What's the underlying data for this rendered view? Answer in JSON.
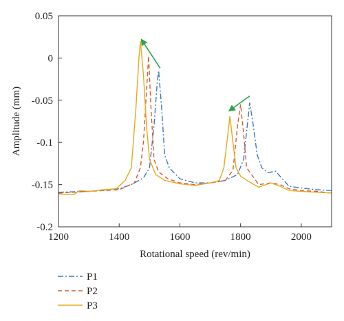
{
  "chart_data": {
    "type": "line",
    "xlabel": "Rotational speed (rev/min)",
    "ylabel": "Amplitude (mm)",
    "xlim": [
      1200,
      2100
    ],
    "ylim": [
      -0.2,
      0.05
    ],
    "xticks": [
      1200,
      1400,
      1600,
      1800,
      2000
    ],
    "yticks": [
      -0.2,
      -0.15,
      -0.1,
      -0.05,
      0,
      0.05
    ],
    "ytick_labels": [
      "-0.2",
      "-0.15",
      "-0.1",
      "-0.05",
      "0",
      "0.05"
    ],
    "xtick_labels": [
      "1200",
      "1400",
      "1600",
      "1800",
      "2000"
    ],
    "grid": false,
    "legend_position": "below plot, left",
    "series": [
      {
        "name": "P1",
        "color": "#3a78c2",
        "dash": "dash-dot",
        "points": [
          [
            1200,
            -0.159
          ],
          [
            1300,
            -0.158
          ],
          [
            1400,
            -0.155
          ],
          [
            1440,
            -0.15
          ],
          [
            1480,
            -0.142
          ],
          [
            1500,
            -0.13
          ],
          [
            1515,
            -0.08
          ],
          [
            1525,
            -0.03
          ],
          [
            1530,
            -0.015
          ],
          [
            1540,
            -0.06
          ],
          [
            1550,
            -0.115
          ],
          [
            1565,
            -0.13
          ],
          [
            1600,
            -0.143
          ],
          [
            1650,
            -0.148
          ],
          [
            1700,
            -0.148
          ],
          [
            1750,
            -0.145
          ],
          [
            1790,
            -0.138
          ],
          [
            1810,
            -0.12
          ],
          [
            1822,
            -0.08
          ],
          [
            1830,
            -0.053
          ],
          [
            1840,
            -0.075
          ],
          [
            1855,
            -0.115
          ],
          [
            1870,
            -0.13
          ],
          [
            1890,
            -0.136
          ],
          [
            1915,
            -0.134
          ],
          [
            1930,
            -0.14
          ],
          [
            1960,
            -0.152
          ],
          [
            2000,
            -0.154
          ],
          [
            2050,
            -0.156
          ],
          [
            2100,
            -0.157
          ]
        ]
      },
      {
        "name": "P2",
        "color": "#d85a2a",
        "dash": "dashed",
        "points": [
          [
            1200,
            -0.16
          ],
          [
            1300,
            -0.158
          ],
          [
            1400,
            -0.156
          ],
          [
            1450,
            -0.148
          ],
          [
            1470,
            -0.13
          ],
          [
            1480,
            -0.1
          ],
          [
            1490,
            -0.04
          ],
          [
            1497,
            0.002
          ],
          [
            1505,
            -0.06
          ],
          [
            1515,
            -0.12
          ],
          [
            1530,
            -0.135
          ],
          [
            1560,
            -0.143
          ],
          [
            1600,
            -0.148
          ],
          [
            1650,
            -0.15
          ],
          [
            1700,
            -0.148
          ],
          [
            1750,
            -0.145
          ],
          [
            1775,
            -0.133
          ],
          [
            1790,
            -0.08
          ],
          [
            1800,
            -0.055
          ],
          [
            1810,
            -0.09
          ],
          [
            1820,
            -0.13
          ],
          [
            1840,
            -0.14
          ],
          [
            1860,
            -0.15
          ],
          [
            1900,
            -0.148
          ],
          [
            1930,
            -0.15
          ],
          [
            1960,
            -0.155
          ],
          [
            2000,
            -0.157
          ],
          [
            2050,
            -0.158
          ],
          [
            2100,
            -0.16
          ]
        ]
      },
      {
        "name": "P3",
        "color": "#e8a81c",
        "dash": "solid",
        "points": [
          [
            1200,
            -0.161
          ],
          [
            1250,
            -0.162
          ],
          [
            1270,
            -0.157
          ],
          [
            1300,
            -0.158
          ],
          [
            1350,
            -0.156
          ],
          [
            1390,
            -0.155
          ],
          [
            1420,
            -0.145
          ],
          [
            1440,
            -0.13
          ],
          [
            1455,
            -0.06
          ],
          [
            1465,
            0.0
          ],
          [
            1470,
            0.02
          ],
          [
            1480,
            -0.02
          ],
          [
            1490,
            -0.08
          ],
          [
            1500,
            -0.12
          ],
          [
            1520,
            -0.138
          ],
          [
            1550,
            -0.145
          ],
          [
            1600,
            -0.149
          ],
          [
            1650,
            -0.151
          ],
          [
            1700,
            -0.148
          ],
          [
            1730,
            -0.145
          ],
          [
            1745,
            -0.13
          ],
          [
            1755,
            -0.1
          ],
          [
            1765,
            -0.069
          ],
          [
            1775,
            -0.1
          ],
          [
            1785,
            -0.13
          ],
          [
            1800,
            -0.14
          ],
          [
            1830,
            -0.147
          ],
          [
            1860,
            -0.153
          ],
          [
            1900,
            -0.148
          ],
          [
            1930,
            -0.152
          ],
          [
            1960,
            -0.157
          ],
          [
            2000,
            -0.158
          ],
          [
            2050,
            -0.159
          ],
          [
            2100,
            -0.16
          ]
        ]
      }
    ],
    "annotations": [
      {
        "type": "arrow",
        "color": "#2aa34a",
        "from": [
          1535,
          -0.012
        ],
        "to": [
          1475,
          0.021
        ]
      },
      {
        "type": "arrow",
        "color": "#2aa34a",
        "from": [
          1830,
          -0.045
        ],
        "to": [
          1765,
          -0.062
        ]
      }
    ]
  }
}
